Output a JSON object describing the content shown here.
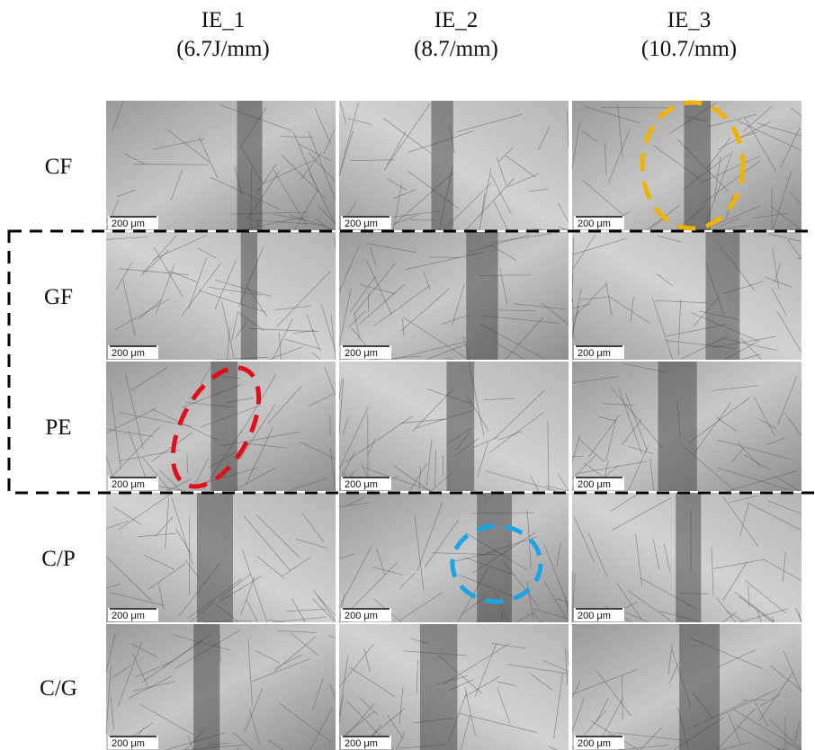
{
  "columns": [
    {
      "name": "IE_1",
      "energy": "(6.7J/mm)"
    },
    {
      "name": "IE_2",
      "energy": "(8.7/mm)"
    },
    {
      "name": "IE_3",
      "energy": "(10.7/mm)"
    }
  ],
  "rows": [
    "CF",
    "GF",
    "PE",
    "C/P",
    "C/G"
  ],
  "scale_bar": "200 μm"
}
